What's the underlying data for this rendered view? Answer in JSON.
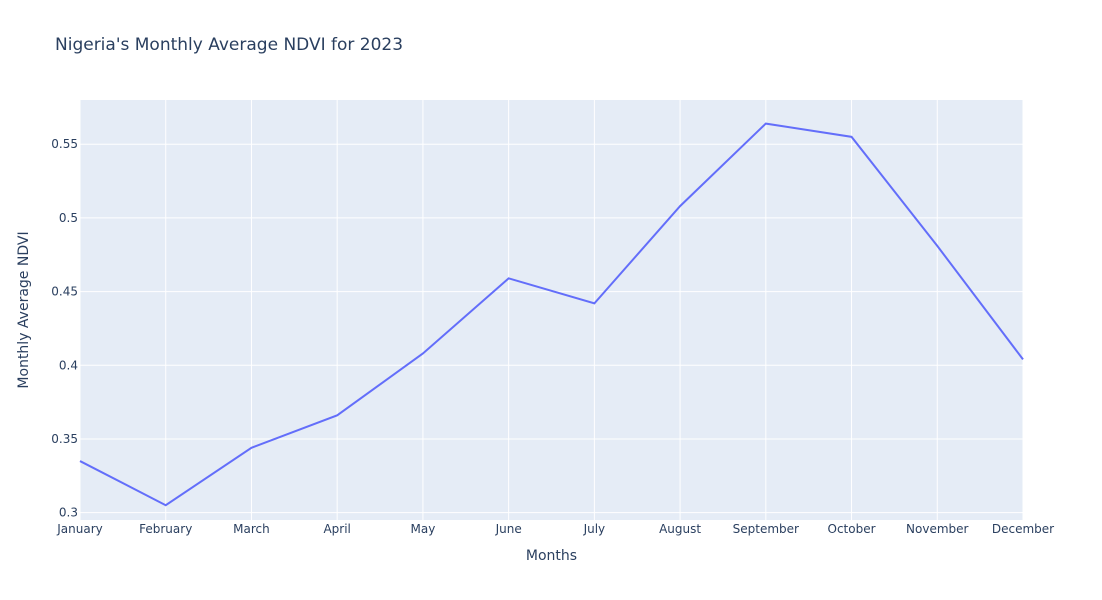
{
  "chart_data": {
    "type": "line",
    "title": "Nigeria's Monthly Average NDVI for 2023",
    "xlabel": "Months",
    "ylabel": "Monthly Average NDVI",
    "categories": [
      "January",
      "February",
      "March",
      "April",
      "May",
      "June",
      "July",
      "August",
      "September",
      "October",
      "November",
      "December"
    ],
    "series": [
      {
        "values": [
          0.335,
          0.305,
          0.344,
          0.366,
          0.408,
          0.459,
          0.442,
          0.508,
          0.564,
          0.555,
          0.481,
          0.404
        ]
      }
    ],
    "ylim": [
      0.295,
      0.58
    ],
    "yticks": [
      "0.3",
      "0.35",
      "0.4",
      "0.45",
      "0.5",
      "0.55"
    ],
    "grid": true,
    "colors": {
      "line": "#636efa",
      "plot_bg": "#e5ecf6",
      "grid": "#ffffff",
      "text": "#2a3f5f"
    }
  }
}
